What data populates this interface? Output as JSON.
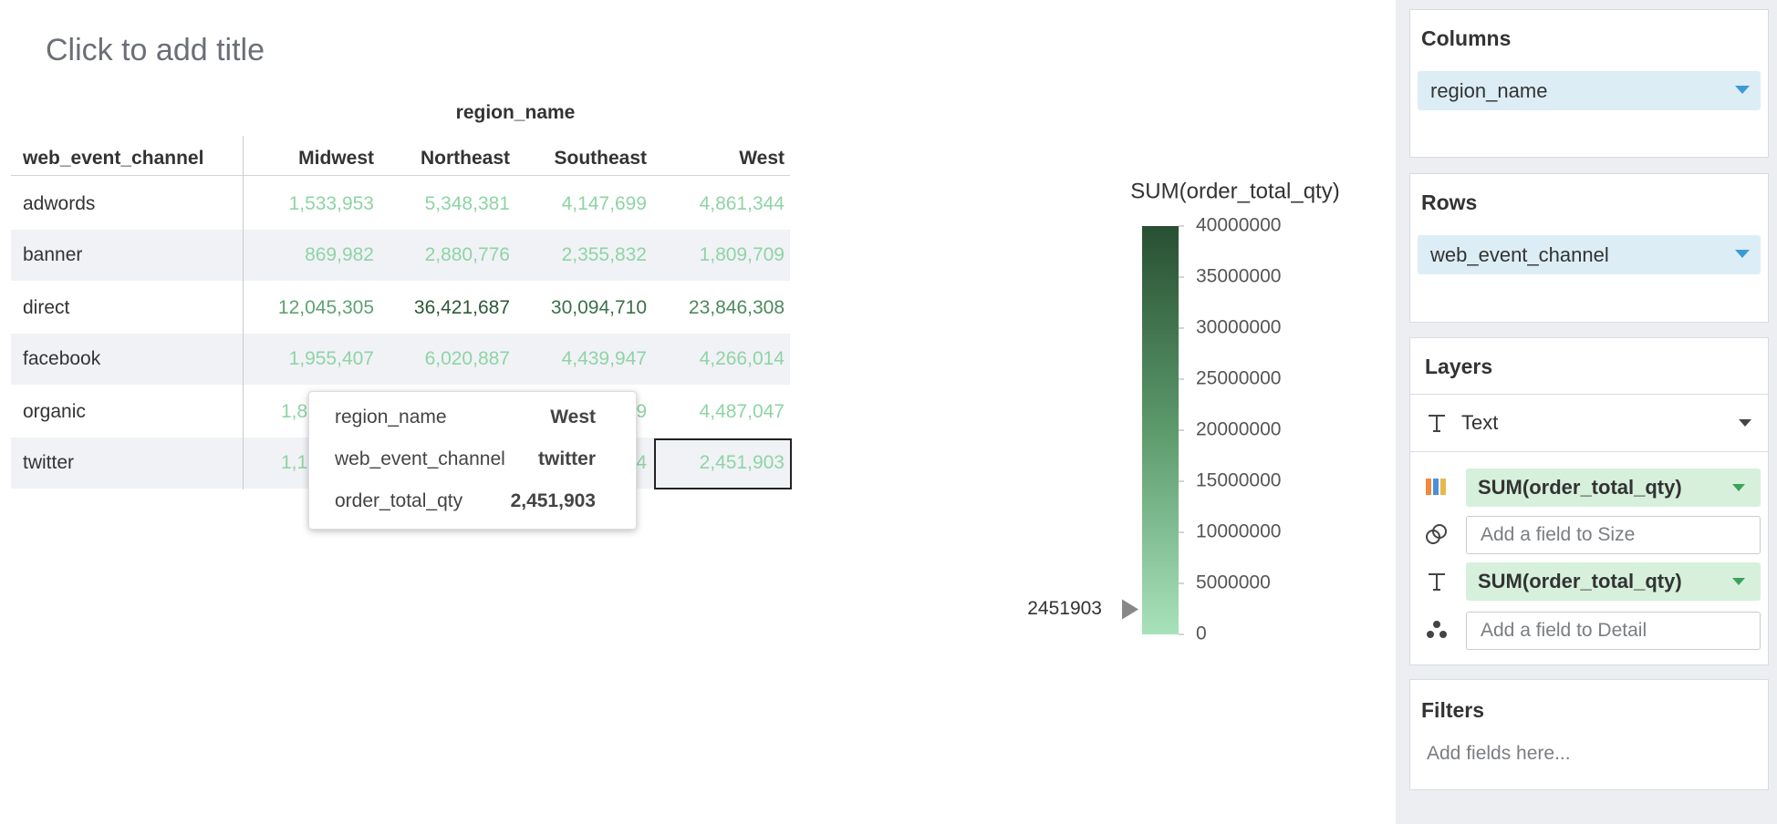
{
  "header": {
    "title": "Click to add title"
  },
  "table": {
    "column_field": "region_name",
    "row_field": "web_event_channel",
    "columns": [
      "Midwest",
      "Northeast",
      "Southeast",
      "West"
    ],
    "rows": [
      {
        "label": "adwords",
        "cells": [
          "1,533,953",
          "5,348,381",
          "4,147,699",
          "4,861,344"
        ]
      },
      {
        "label": "banner",
        "cells": [
          "869,982",
          "2,880,776",
          "2,355,832",
          "1,809,709"
        ]
      },
      {
        "label": "direct",
        "cells": [
          "12,045,305",
          "36,421,687",
          "30,094,710",
          "23,846,308"
        ]
      },
      {
        "label": "facebook",
        "cells": [
          "1,955,407",
          "6,020,887",
          "4,439,947",
          "4,266,014"
        ]
      },
      {
        "label": "organic",
        "cells": [
          "1,8",
          null,
          "9",
          "4,487,047"
        ]
      },
      {
        "label": "twitter",
        "cells": [
          "1,1",
          null,
          "4",
          "2,451,903"
        ]
      }
    ]
  },
  "tooltip": {
    "rows": [
      [
        "region_name",
        "West"
      ],
      [
        "web_event_channel",
        "twitter"
      ],
      [
        "order_total_qty",
        "2,451,903"
      ]
    ]
  },
  "legend": {
    "title": "SUM(order_total_qty)",
    "ylim": [
      0,
      40000000
    ],
    "yticks": [
      0,
      5000000,
      10000000,
      15000000,
      20000000,
      25000000,
      30000000,
      35000000,
      40000000
    ],
    "marker": 2451903
  },
  "panel": {
    "columns": {
      "label": "Columns",
      "field": "region_name"
    },
    "rows": {
      "label": "Rows",
      "field": "web_event_channel"
    },
    "layers": {
      "label": "Layers",
      "mark_type": "Text",
      "encodings": [
        "SUM(order_total_qty)",
        "Add a field to Size",
        "SUM(order_total_qty)",
        "Add a field to Detail"
      ]
    },
    "filters": {
      "label": "Filters",
      "placeholder": "Add fields here..."
    }
  }
}
